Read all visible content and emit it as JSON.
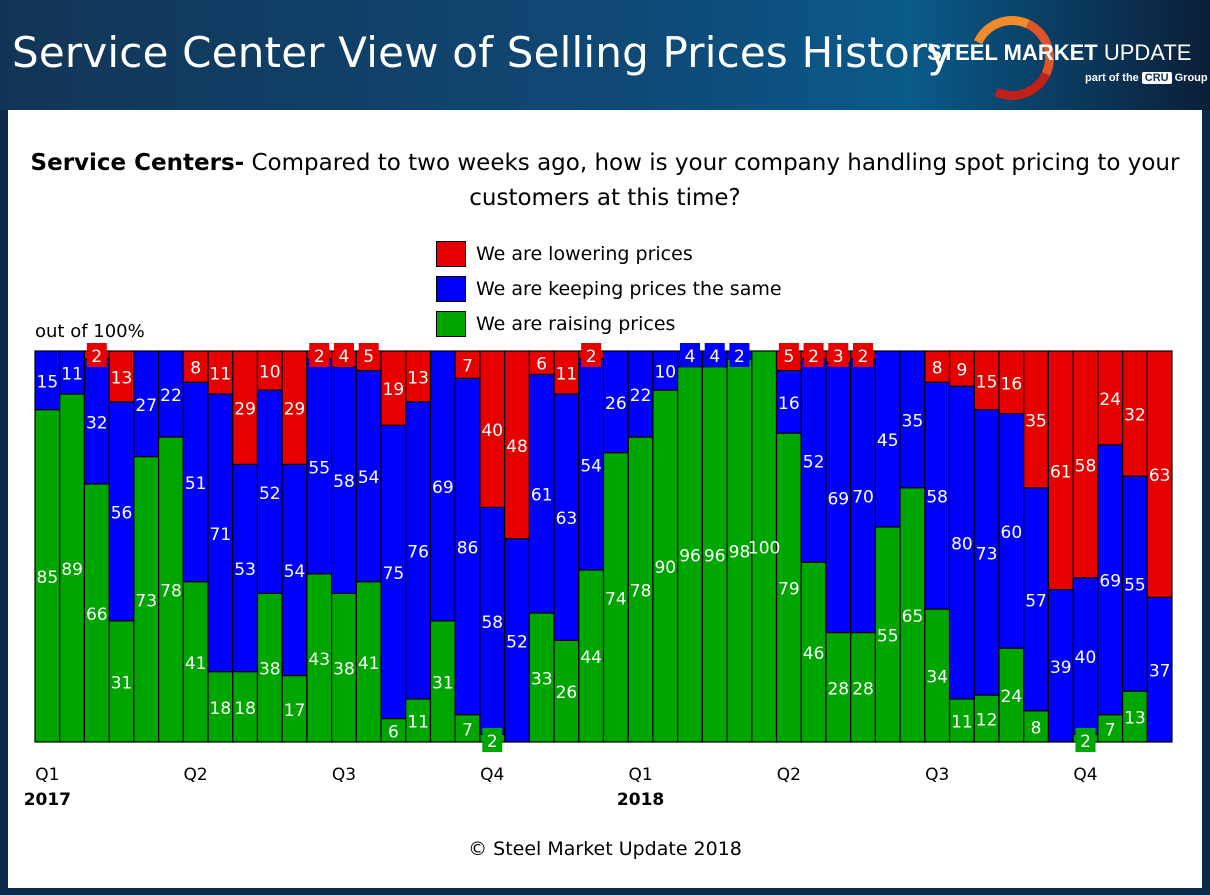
{
  "header": {
    "title": "Service Center View of Selling Prices History",
    "logo": {
      "brand_bold": "STEEL MARKET",
      "brand_thin": "UPDATE",
      "sub_pre": "part of the",
      "sub_mark": "CRU",
      "sub_post": "Group"
    }
  },
  "chart_data": {
    "type": "bar",
    "stacked": true,
    "title_bold": "Service Centers-",
    "title_rest": " Compared to two weeks ago, how is your company handling spot pricing to your customers at this time?",
    "ylabel": "out of 100%",
    "ylim": [
      0,
      100
    ],
    "grid": false,
    "legend_placement": "top-center",
    "legend": [
      {
        "name": "We are lowering prices",
        "color": "#e60000"
      },
      {
        "name": "We are keeping prices the same",
        "color": "#0000ff"
      },
      {
        "name": "We are raising prices",
        "color": "#00a600"
      }
    ],
    "x_tick_labels": [
      {
        "bar": 1,
        "label": "Q1",
        "year": "2017"
      },
      {
        "bar": 7,
        "label": "Q2"
      },
      {
        "bar": 13,
        "label": "Q3"
      },
      {
        "bar": 19,
        "label": "Q4"
      },
      {
        "bar": 25,
        "label": "Q1",
        "year": "2018"
      },
      {
        "bar": 31,
        "label": "Q2"
      },
      {
        "bar": 37,
        "label": "Q3"
      },
      {
        "bar": 43,
        "label": "Q4"
      }
    ],
    "series": [
      {
        "name": "We are raising prices",
        "color": "#00a600",
        "values": [
          85,
          89,
          66,
          31,
          73,
          78,
          41,
          18,
          18,
          38,
          17,
          43,
          38,
          41,
          6,
          11,
          31,
          7,
          2,
          0,
          33,
          26,
          44,
          74,
          78,
          90,
          96,
          96,
          98,
          100,
          79,
          46,
          28,
          28,
          55,
          65,
          34,
          11,
          12,
          24,
          8,
          0,
          2,
          7,
          13,
          0
        ]
      },
      {
        "name": "We are keeping prices the same",
        "color": "#0000ff",
        "values": [
          15,
          11,
          32,
          56,
          27,
          22,
          51,
          71,
          53,
          52,
          54,
          55,
          58,
          54,
          75,
          76,
          69,
          86,
          58,
          52,
          61,
          63,
          54,
          26,
          22,
          10,
          4,
          4,
          2,
          0,
          16,
          52,
          69,
          70,
          45,
          35,
          58,
          80,
          73,
          60,
          57,
          39,
          40,
          69,
          55,
          37
        ]
      },
      {
        "name": "We are lowering prices",
        "color": "#e60000",
        "values": [
          0,
          0,
          2,
          13,
          0,
          0,
          8,
          11,
          29,
          10,
          29,
          2,
          4,
          5,
          19,
          13,
          0,
          7,
          40,
          48,
          6,
          11,
          2,
          0,
          0,
          0,
          0,
          0,
          0,
          0,
          5,
          2,
          3,
          2,
          0,
          0,
          8,
          9,
          15,
          16,
          35,
          61,
          58,
          24,
          32,
          63
        ]
      }
    ]
  },
  "footer": "© Steel Market Update 2018"
}
